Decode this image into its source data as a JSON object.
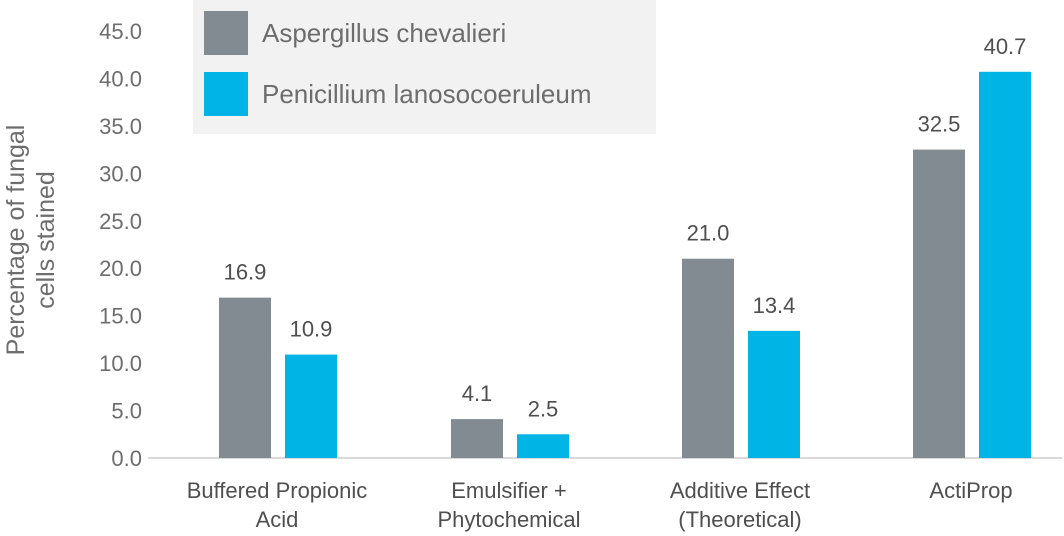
{
  "chart_data": {
    "type": "bar",
    "categories": [
      [
        "Buffered Propionic",
        "Acid"
      ],
      [
        "Emulsifier +",
        "Phytochemical"
      ],
      [
        "Additive Effect",
        "(Theoretical)"
      ],
      [
        "ActiProp"
      ]
    ],
    "series": [
      {
        "name": "Aspergillus chevalieri",
        "color": "#818b91",
        "values": [
          16.9,
          4.1,
          21.0,
          32.5
        ]
      },
      {
        "name": "Penicillium lanosocoeruleum",
        "color": "#00b4e6",
        "values": [
          10.9,
          2.5,
          13.4,
          40.7
        ]
      }
    ],
    "ylabel": [
      "Percentage of fungal",
      "cells stained"
    ],
    "ylim": [
      0,
      45
    ],
    "yticks": [
      "0.0",
      "5.0",
      "10.0",
      "15.0",
      "20.0",
      "25.0",
      "30.0",
      "35.0",
      "40.0",
      "45.0"
    ],
    "legend_position": "top-left",
    "legend_background": "#f2f2f2",
    "axis_color": "#d9d9d9",
    "grid": false
  }
}
